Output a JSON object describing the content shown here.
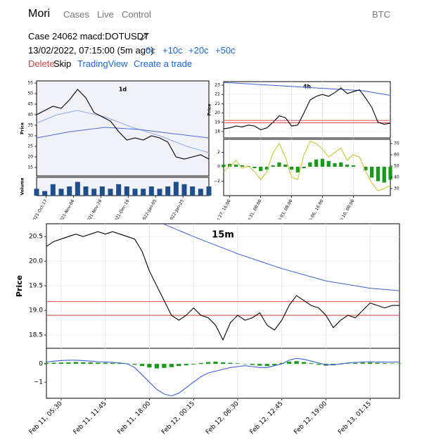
{
  "nav": {
    "brand": "Mori",
    "links": [
      "Cases",
      "Live",
      "Control"
    ],
    "right": "BTC"
  },
  "case": {
    "title": "Case 24062 macd:DOTUSDT",
    "time": "13/02/2022, 07:15:00 (5m ago)",
    "offsets": [
      "0c",
      "+10c",
      "+20c",
      "+50c"
    ],
    "actions": [
      "Delete",
      "Skip",
      "TradingView",
      "Create a trade"
    ]
  },
  "charts": [
    {
      "type": "line",
      "title": "1d",
      "ylabel": "Price",
      "grid": false,
      "xlim": [
        0,
        126
      ],
      "ylim": [
        11,
        56
      ],
      "yticks": [
        15,
        20,
        25,
        30,
        35,
        40,
        45,
        50,
        55
      ],
      "xticks": [
        {
          "value": 7,
          "label": "2021-Oct-17"
        },
        {
          "value": 27,
          "label": "2021-Nov-06"
        },
        {
          "value": 47,
          "label": "2021-Nov-26"
        },
        {
          "value": 67,
          "label": "2021-Dec-16"
        },
        {
          "value": 87,
          "label": "2022-Jan-05"
        },
        {
          "value": 107,
          "label": "2022-Jan-25"
        }
      ],
      "close": {
        "color": "#000000",
        "x": [
          0,
          6,
          12,
          18,
          24,
          30,
          36,
          42,
          48,
          54,
          60,
          66,
          72,
          78,
          84,
          90,
          96,
          102,
          108,
          114,
          120,
          126
        ],
        "values": [
          40,
          42,
          44,
          43,
          47,
          52,
          48,
          41,
          39,
          37,
          32,
          28,
          29,
          28,
          30,
          29,
          27,
          20,
          19,
          20,
          21,
          19
        ]
      },
      "ma": [
        {
          "color": "#8fa8ee",
          "x": [
            0,
            15,
            30,
            50,
            70,
            90,
            110,
            126
          ],
          "values": [
            36,
            40,
            42,
            39,
            34,
            30,
            25,
            22
          ]
        },
        {
          "color": "#4a6ad8",
          "x": [
            0,
            25,
            50,
            75,
            100,
            126
          ],
          "values": [
            29,
            32,
            34,
            33,
            31,
            29
          ]
        }
      ],
      "volume": {
        "label": "Volume",
        "color": "#1f4e8c",
        "vlim": [
          0,
          8
        ],
        "values": [
          3,
          2,
          5,
          3,
          4,
          6,
          4,
          3,
          4,
          3,
          5,
          4,
          3,
          3,
          4,
          3,
          4,
          6,
          5,
          4,
          3,
          4
        ]
      }
    },
    {
      "type": "line",
      "title": "4h",
      "ylabel": "Price",
      "grid": true,
      "xlim": [
        0,
        108
      ],
      "ylim": [
        17.32,
        23.38
      ],
      "yticks": [
        18,
        19,
        20,
        21,
        22,
        23
      ],
      "xticks": [
        {
          "value": 4,
          "label": "Jan 27, 16:00"
        },
        {
          "value": 24,
          "label": "Jan 31, 00:00"
        },
        {
          "value": 44,
          "label": "Feb 03, 08:00"
        },
        {
          "value": 64,
          "label": "Feb 06, 16:00"
        },
        {
          "value": 84,
          "label": "Feb 10, 00:00"
        }
      ],
      "close": {
        "color": "#000000",
        "x": [
          0,
          4,
          8,
          12,
          16,
          20,
          24,
          28,
          32,
          36,
          40,
          44,
          48,
          52,
          56,
          60,
          64,
          68,
          72,
          76,
          80,
          84,
          88,
          92,
          96,
          100,
          104,
          108
        ],
        "values": [
          18.3,
          18.4,
          18.6,
          18.5,
          18.7,
          18.6,
          18.2,
          18.4,
          19.0,
          19.7,
          19.5,
          18.6,
          18.7,
          20.0,
          21.4,
          21.8,
          22.0,
          21.8,
          22.2,
          22.7,
          22.1,
          22.3,
          22.5,
          21.6,
          20.6,
          19.0,
          18.8,
          18.9
        ]
      },
      "ma": [
        {
          "color": "#3a5fd8",
          "x": [
            0,
            30,
            60,
            90,
            108
          ],
          "values": [
            23.3,
            23.0,
            22.7,
            22.4,
            21.9
          ]
        }
      ],
      "levels": {
        "color": "#e06060",
        "values": [
          19.2,
          18.95
        ]
      },
      "macd": {
        "ylim": [
          -4,
          3.8
        ],
        "yticks": [
          2,
          0,
          {
            "value": -2,
            "label": "−2"
          }
        ],
        "hist": {
          "color": "#1a9a1a",
          "values": [
            0.3,
            0.4,
            0.3,
            0.2,
            0.1,
            -0.2,
            -0.6,
            -0.4,
            0.2,
            0.6,
            0.3,
            -0.4,
            -0.8,
            -0.2,
            0.6,
            1.0,
            1.1,
            0.8,
            0.5,
            0.6,
            0.3,
            0.2,
            0.0,
            -0.5,
            -1.5,
            -2.0,
            -2.2,
            -1.8
          ]
        }
      },
      "rsi": {
        "color": "#c8c020",
        "y2lim": [
          23.75,
          73.75
        ],
        "y2ticks": [
          30,
          40,
          50,
          60,
          70
        ],
        "values": [
          45,
          50,
          55,
          48,
          50,
          45,
          38,
          45,
          62,
          70,
          58,
          40,
          38,
          60,
          72,
          70,
          65,
          58,
          62,
          66,
          55,
          60,
          58,
          45,
          35,
          28,
          30,
          33
        ]
      }
    },
    {
      "type": "line",
      "title": "15m",
      "ylabel": "Price",
      "grid": true,
      "xlim": [
        0,
        48
      ],
      "ylim": [
        18.23,
        20.76
      ],
      "yticks": [
        20.5,
        {
          "value": 20,
          "label": "20.0"
        },
        19.5,
        {
          "value": 19,
          "label": "19.0"
        },
        18.5
      ],
      "xticks": [
        {
          "value": 2,
          "label": "Feb 11, 05:30"
        },
        {
          "value": 8,
          "label": "Feb 11, 11:45"
        },
        {
          "value": 14,
          "label": "Feb 11, 18:00"
        },
        {
          "value": 20,
          "label": "Feb 12, 00:15"
        },
        {
          "value": 26,
          "label": "Feb 12, 06:30"
        },
        {
          "value": 32,
          "label": "Feb 12, 12:45"
        },
        {
          "value": 38,
          "label": "Feb 12, 19:00"
        },
        {
          "value": 44,
          "label": "Feb 13, 01:15"
        }
      ],
      "close": {
        "color": "#000000",
        "x": [
          0,
          1,
          2,
          3,
          4,
          5,
          6,
          7,
          8,
          9,
          10,
          11,
          12,
          13,
          14,
          15,
          16,
          17,
          18,
          19,
          20,
          21,
          22,
          23,
          24,
          25,
          26,
          27,
          28,
          29,
          30,
          31,
          32,
          33,
          34,
          35,
          36,
          37,
          38,
          39,
          40,
          41,
          42,
          43,
          44,
          45,
          46,
          47,
          48
        ],
        "values": [
          20.3,
          20.4,
          20.45,
          20.5,
          20.55,
          20.5,
          20.55,
          20.6,
          20.55,
          20.6,
          20.55,
          20.5,
          20.45,
          20.2,
          19.8,
          19.5,
          19.2,
          18.9,
          18.8,
          18.9,
          19.05,
          18.9,
          18.85,
          18.7,
          18.4,
          18.75,
          18.9,
          18.8,
          18.85,
          18.95,
          18.7,
          18.6,
          18.8,
          19.1,
          19.3,
          19.2,
          19.1,
          19.05,
          18.9,
          18.65,
          18.8,
          18.9,
          18.85,
          19.0,
          19.15,
          19.1,
          19.05,
          19.1,
          19.1
        ]
      },
      "ma": [
        {
          "color": "#3a5fd8",
          "x": [
            16,
            20,
            26,
            32,
            38,
            44,
            48
          ],
          "values": [
            20.75,
            20.5,
            20.15,
            19.85,
            19.6,
            19.45,
            19.4
          ]
        }
      ],
      "levels": {
        "color": "#e06060",
        "values": [
          19.18,
          18.9
        ]
      },
      "macd": {
        "ylim": [
          -1.88,
          0.85
        ],
        "yticks": [
          0,
          {
            "value": -1,
            "label": "−1"
          }
        ],
        "hist": {
          "color": "#1a9a1a",
          "values": [
            0.05,
            0.06,
            0.07,
            0.08,
            0.1,
            0.09,
            0.08,
            0.07,
            0.06,
            0.05,
            0.04,
            0.02,
            -0.05,
            -0.12,
            -0.2,
            -0.25,
            -0.22,
            -0.18,
            -0.12,
            -0.08,
            -0.04,
            0.05,
            0.1,
            0.12,
            0.08,
            0.06,
            0.03,
            -0.02,
            -0.06,
            -0.1,
            -0.12,
            -0.08,
            0.05,
            0.12,
            0.15,
            0.1,
            0.04,
            -0.05,
            -0.1,
            -0.08,
            -0.03,
            0.02,
            0.05,
            0.07,
            0.08,
            0.06,
            0.04,
            0.03,
            0.02
          ]
        },
        "line": {
          "color": "#3a5fd8",
          "values": [
            0.1,
            0.15,
            0.18,
            0.2,
            0.2,
            0.18,
            0.15,
            0.12,
            0.1,
            0.08,
            0.05,
            0.0,
            -0.2,
            -0.6,
            -1.0,
            -1.4,
            -1.65,
            -1.75,
            -1.6,
            -1.3,
            -1.0,
            -0.7,
            -0.5,
            -0.4,
            -0.3,
            -0.2,
            -0.15,
            -0.1,
            -0.15,
            -0.2,
            -0.2,
            -0.1,
            0.0,
            0.2,
            0.3,
            0.25,
            0.15,
            0.05,
            -0.05,
            -0.05,
            0.0,
            0.05,
            0.08,
            0.1,
            0.12,
            0.1,
            0.1,
            0.1,
            0.1
          ]
        }
      }
    }
  ]
}
